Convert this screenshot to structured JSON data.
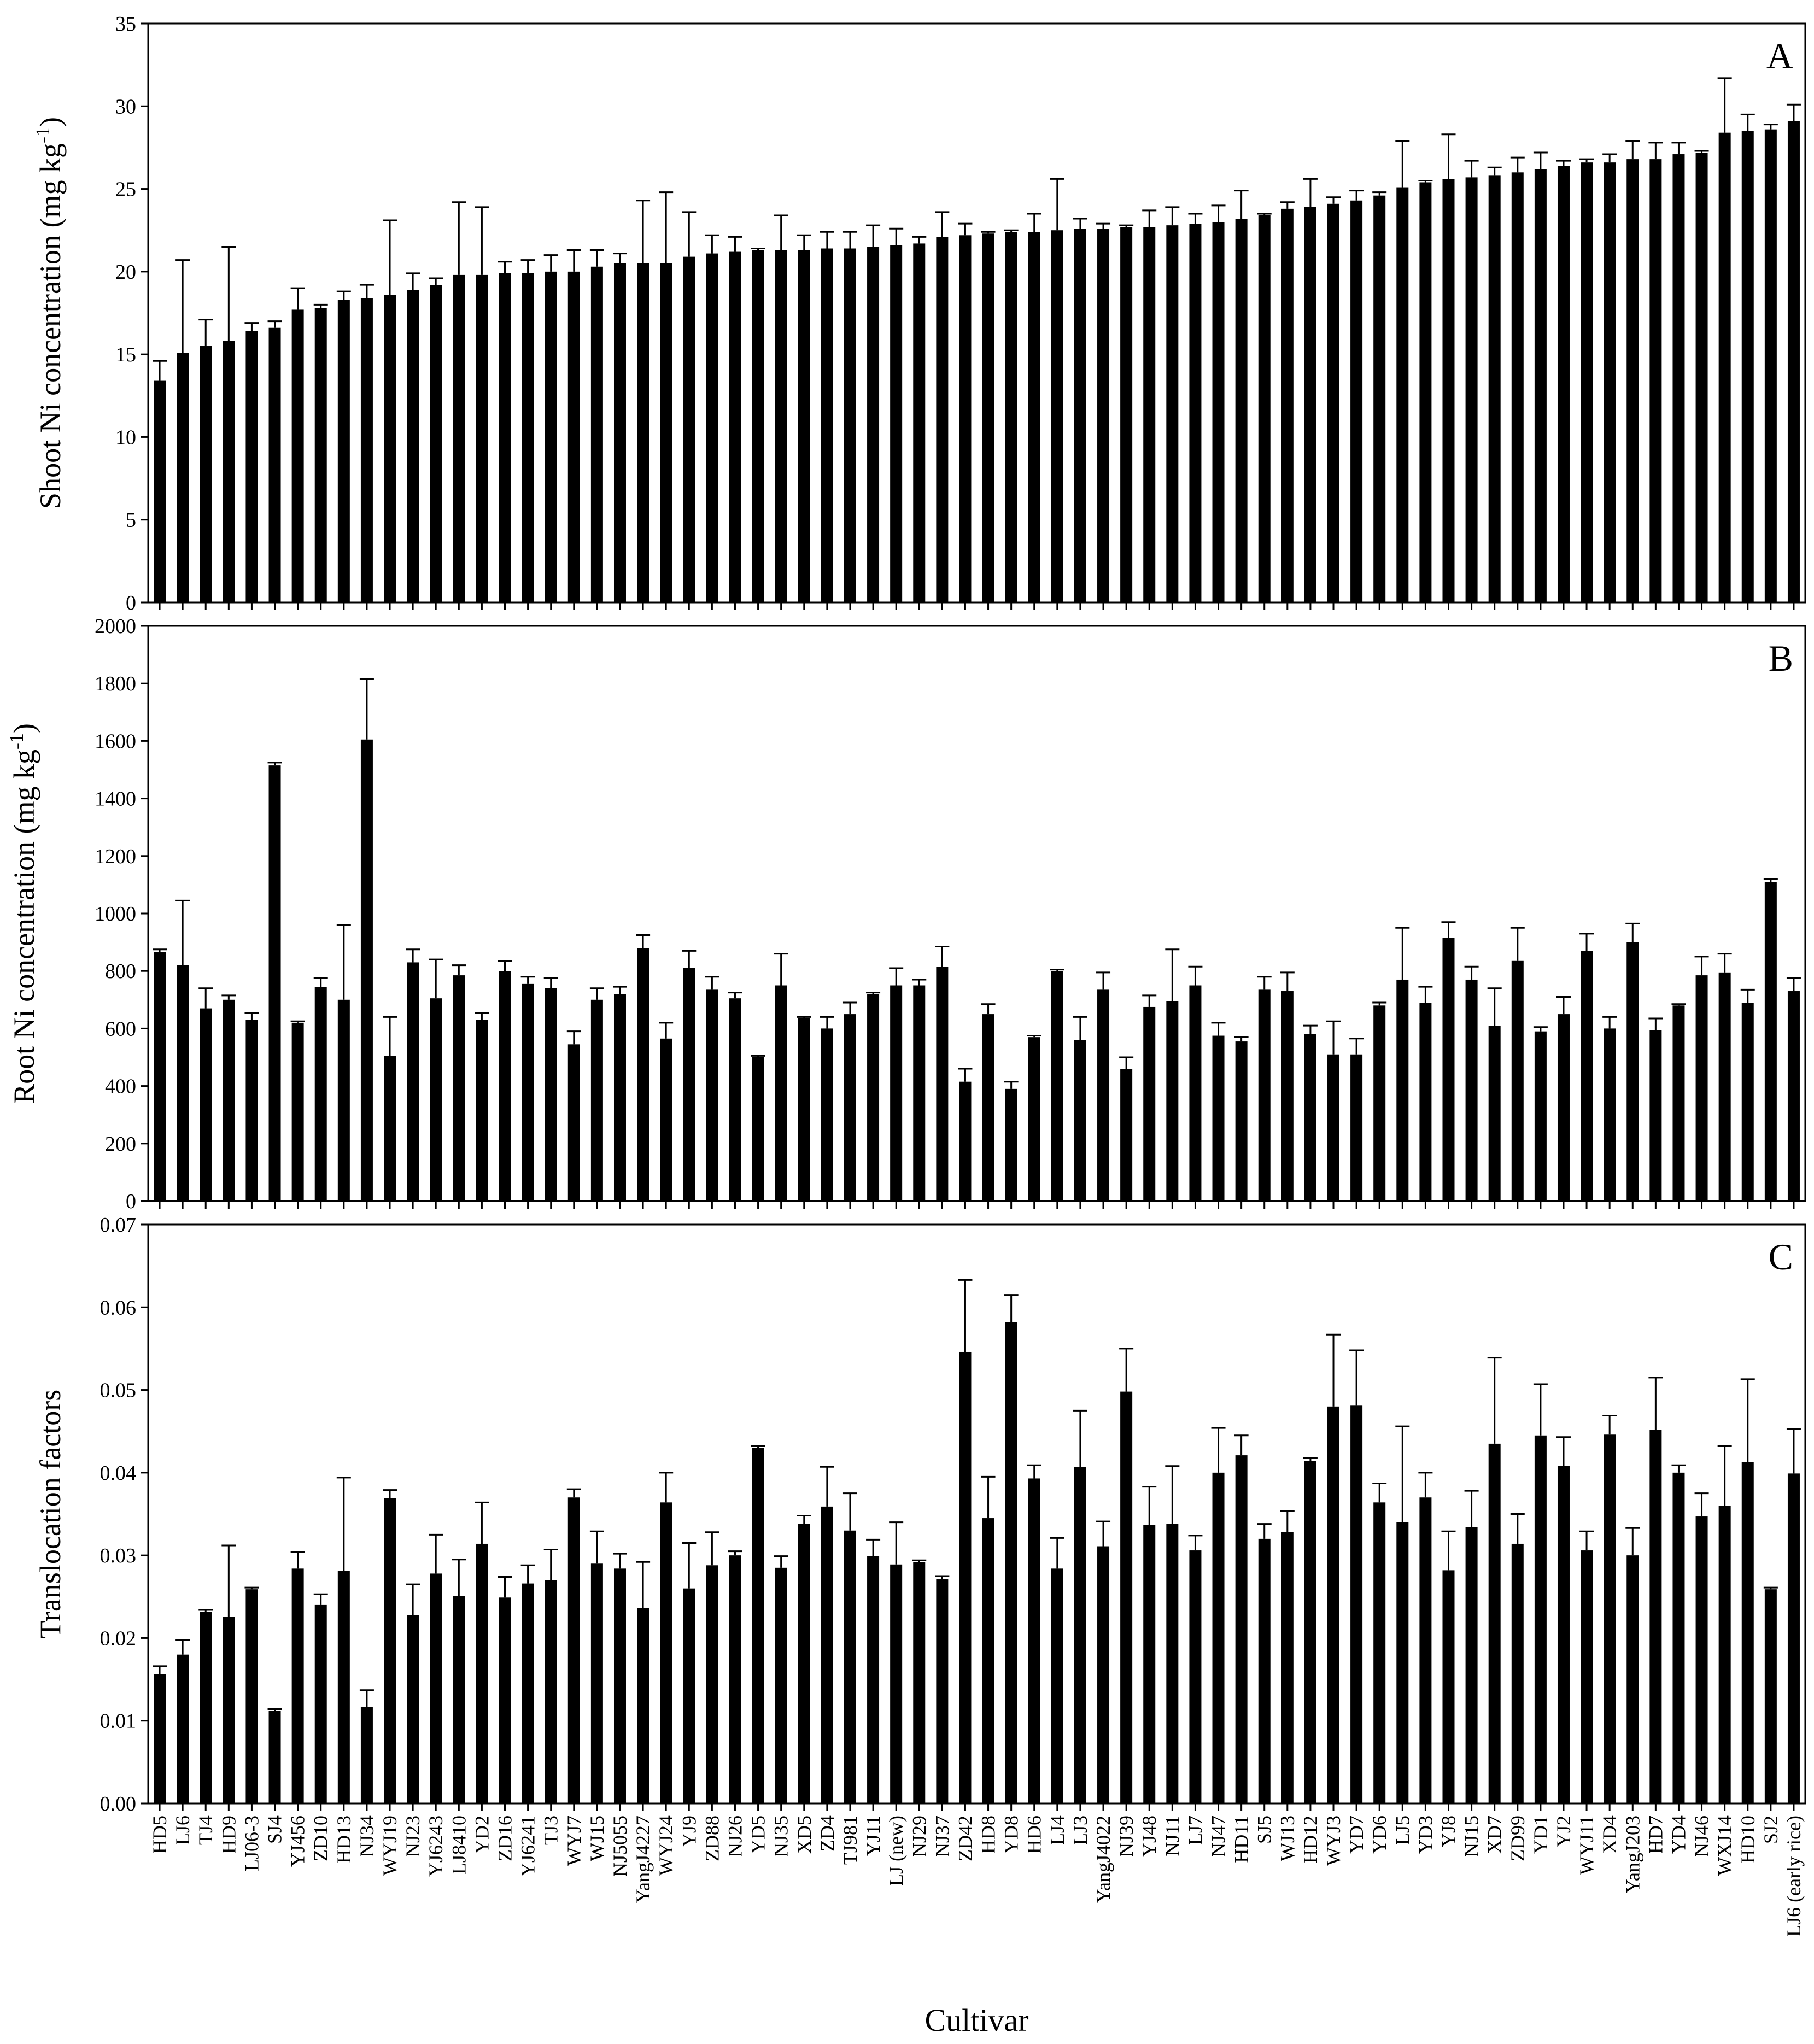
{
  "chart_data": [
    {
      "type": "bar",
      "panel": "A",
      "ylabel": "Shoot Ni concentration (mg kg",
      "ylabel_sup": "-1",
      "ylabel_end": ")",
      "color": "#000000",
      "ylim": [
        0,
        35
      ],
      "yticks": [
        0,
        5,
        10,
        15,
        20,
        25,
        30,
        35
      ],
      "values": [
        13.4,
        15.1,
        15.5,
        15.8,
        16.4,
        16.6,
        17.7,
        17.8,
        18.3,
        18.4,
        18.6,
        18.9,
        19.2,
        19.8,
        19.8,
        19.9,
        19.9,
        20.0,
        20.0,
        20.3,
        20.5,
        20.5,
        20.5,
        20.9,
        21.1,
        21.2,
        21.3,
        21.3,
        21.3,
        21.4,
        21.4,
        21.5,
        21.6,
        21.7,
        22.1,
        22.2,
        22.3,
        22.4,
        22.4,
        22.5,
        22.6,
        22.6,
        22.7,
        22.7,
        22.8,
        22.9,
        23.0,
        23.2,
        23.4,
        23.8,
        23.9,
        24.1,
        24.3,
        24.6,
        25.1,
        25.4,
        25.6,
        25.7,
        25.8,
        26.0,
        26.2,
        26.4,
        26.6,
        26.6,
        26.8,
        26.8,
        27.1,
        27.2,
        28.4,
        28.5,
        28.6,
        29.1
      ],
      "errors": [
        1.2,
        5.6,
        1.6,
        5.7,
        0.5,
        0.4,
        1.3,
        0.2,
        0.5,
        0.8,
        4.5,
        1.0,
        0.4,
        4.4,
        4.1,
        0.7,
        0.8,
        1.0,
        1.3,
        1.0,
        0.6,
        3.8,
        4.3,
        2.7,
        1.1,
        0.9,
        0.1,
        2.1,
        0.9,
        1.0,
        1.0,
        1.3,
        1.0,
        0.4,
        1.5,
        0.7,
        0.1,
        0.1,
        1.1,
        3.1,
        0.6,
        0.3,
        0.1,
        1.0,
        1.1,
        0.6,
        1.0,
        1.7,
        0.1,
        0.4,
        1.7,
        0.4,
        0.6,
        0.2,
        2.8,
        0.1,
        2.7,
        1.0,
        0.5,
        0.9,
        1.0,
        0.3,
        0.2,
        0.5,
        1.1,
        1.0,
        0.7,
        0.1,
        3.3,
        1.0,
        0.3,
        1.0
      ]
    },
    {
      "type": "bar",
      "panel": "B",
      "ylabel": "Root Ni concentration (mg kg",
      "ylabel_sup": "-1",
      "ylabel_end": ")",
      "color": "#000000",
      "ylim": [
        0,
        2000
      ],
      "yticks": [
        0,
        200,
        400,
        600,
        800,
        1000,
        1200,
        1400,
        1600,
        1800,
        2000
      ],
      "values": [
        865,
        820,
        670,
        700,
        630,
        1515,
        620,
        745,
        700,
        1605,
        505,
        830,
        705,
        785,
        630,
        800,
        755,
        740,
        545,
        700,
        720,
        880,
        565,
        810,
        735,
        705,
        500,
        750,
        635,
        600,
        650,
        720,
        750,
        750,
        815,
        415,
        650,
        390,
        570,
        800,
        560,
        735,
        460,
        675,
        695,
        750,
        575,
        555,
        735,
        730,
        580,
        510,
        510,
        680,
        770,
        690,
        915,
        770,
        610,
        835,
        590,
        650,
        870,
        600,
        900,
        595,
        680,
        785,
        795,
        690,
        1110,
        730
      ],
      "errors": [
        10,
        225,
        70,
        15,
        25,
        10,
        5,
        30,
        260,
        210,
        135,
        45,
        135,
        35,
        25,
        35,
        25,
        35,
        45,
        40,
        25,
        45,
        55,
        60,
        45,
        20,
        5,
        110,
        5,
        40,
        40,
        5,
        60,
        20,
        70,
        45,
        35,
        25,
        5,
        5,
        80,
        60,
        40,
        40,
        180,
        65,
        45,
        15,
        45,
        65,
        30,
        115,
        55,
        10,
        180,
        55,
        55,
        45,
        130,
        115,
        15,
        60,
        60,
        40,
        65,
        40,
        5,
        65,
        65,
        45,
        10,
        45
      ]
    },
    {
      "type": "bar",
      "panel": "C",
      "ylabel": "Translocation factors",
      "xlabel": "Cultivar",
      "color": "#000000",
      "ylim": [
        0,
        0.07
      ],
      "yticks": [
        {
          "value": 0,
          "label": "0.00"
        },
        0.01,
        0.02,
        0.03,
        0.04,
        0.05,
        0.06,
        0.07
      ],
      "categories": [
        "HD5",
        "LJ6",
        "TJ4",
        "HD9",
        "LJ06-3",
        "SJ4",
        "YJ456",
        "ZD10",
        "HD13",
        "NJ34",
        "WYJ19",
        "NJ23",
        "YJ6243",
        "LJ8410",
        "YD2",
        "ZD16",
        "YJ6241",
        "TJ3",
        "WYJ7",
        "WJ15",
        "NJ5055",
        "YangJ4227",
        "WYJ24",
        "YJ9",
        "ZD88",
        "NJ26",
        "YD5",
        "NJ35",
        "XD5",
        "ZD4",
        "TJ981",
        "YJ11",
        "LJ (new)",
        "NJ29",
        "NJ37",
        "ZD42",
        "HD8",
        "YD8",
        "HD6",
        "LJ4",
        "LJ3",
        "YangJ4022",
        "NJ39",
        "YJ48",
        "NJ11",
        "LJ7",
        "NJ47",
        "HD11",
        "SJ5",
        "WJ13",
        "HD12",
        "WYJ3",
        "YD7",
        "YD6",
        "LJ5",
        "YD3",
        "YJ8",
        "NJ15",
        "XD7",
        "ZD99",
        "YD1",
        "YJ2",
        "WYJ11",
        "XD4",
        "YangJ203",
        "HD7",
        "YD4",
        "NJ46",
        "WXJ14",
        "HD10",
        "SJ2",
        "LJ6 (early rice)"
      ],
      "values": [
        0.0156,
        0.018,
        0.0232,
        0.0226,
        0.0259,
        0.0112,
        0.0284,
        0.024,
        0.0281,
        0.0117,
        0.0369,
        0.0228,
        0.0278,
        0.0251,
        0.0314,
        0.0249,
        0.0266,
        0.027,
        0.037,
        0.029,
        0.0284,
        0.0236,
        0.0364,
        0.026,
        0.0288,
        0.03,
        0.043,
        0.0285,
        0.0338,
        0.0359,
        0.033,
        0.0299,
        0.0289,
        0.0292,
        0.0271,
        0.0546,
        0.0345,
        0.0582,
        0.0393,
        0.0284,
        0.0407,
        0.0311,
        0.0498,
        0.0337,
        0.0338,
        0.0306,
        0.04,
        0.0421,
        0.032,
        0.0328,
        0.0414,
        0.048,
        0.0481,
        0.0364,
        0.034,
        0.037,
        0.0282,
        0.0334,
        0.0435,
        0.0314,
        0.0445,
        0.0408,
        0.0306,
        0.0446,
        0.03,
        0.0452,
        0.04,
        0.0347,
        0.036,
        0.0413,
        0.0259,
        0.0399
      ],
      "errors": [
        0.001,
        0.0018,
        0.0002,
        0.0086,
        0.0002,
        0.0002,
        0.002,
        0.0013,
        0.0113,
        0.002,
        0.001,
        0.0037,
        0.0047,
        0.0044,
        0.005,
        0.0025,
        0.0022,
        0.0037,
        0.001,
        0.0039,
        0.0018,
        0.0056,
        0.0036,
        0.0055,
        0.004,
        0.0005,
        0.0002,
        0.0014,
        0.001,
        0.0048,
        0.0045,
        0.002,
        0.0051,
        0.0002,
        0.0004,
        0.0087,
        0.005,
        0.0033,
        0.0016,
        0.0037,
        0.0068,
        0.003,
        0.0052,
        0.0046,
        0.007,
        0.0018,
        0.0054,
        0.0024,
        0.0018,
        0.0026,
        0.0004,
        0.0087,
        0.0067,
        0.0023,
        0.0116,
        0.003,
        0.0047,
        0.0044,
        0.0104,
        0.0036,
        0.0062,
        0.0035,
        0.0023,
        0.0023,
        0.0033,
        0.0063,
        0.0009,
        0.0028,
        0.0072,
        0.01,
        0.0002,
        0.0054
      ]
    }
  ]
}
